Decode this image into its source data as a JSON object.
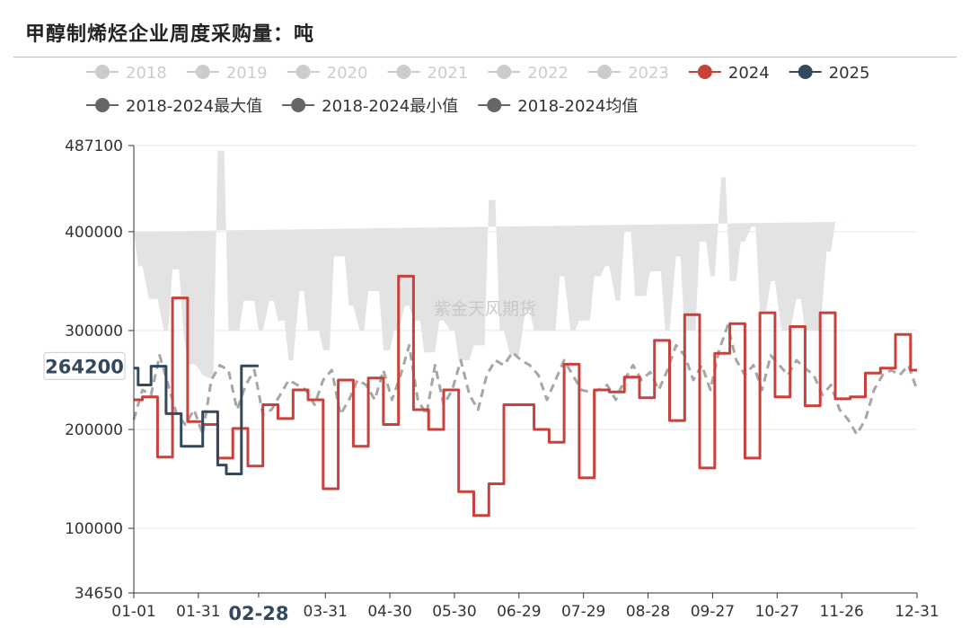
{
  "title": "甲醇制烯烃企业周度采购量：吨",
  "watermark": "紫金天风期货",
  "colors": {
    "band": "#e3e3e3",
    "mean": "#a6a6a6",
    "s2024": "#c8413d",
    "s2025": "#34495e",
    "inactive": "#cccccc",
    "stat_marker": "#666666"
  },
  "legend_row1": [
    {
      "label": "2018",
      "color": "#cccccc",
      "active": false
    },
    {
      "label": "2019",
      "color": "#cccccc",
      "active": false
    },
    {
      "label": "2020",
      "color": "#cccccc",
      "active": false
    },
    {
      "label": "2021",
      "color": "#cccccc",
      "active": false
    },
    {
      "label": "2022",
      "color": "#cccccc",
      "active": false
    },
    {
      "label": "2023",
      "color": "#cccccc",
      "active": false
    },
    {
      "label": "2024",
      "color": "#c8413d",
      "active": true
    },
    {
      "label": "2025",
      "color": "#34495e",
      "active": true
    }
  ],
  "legend_row2": [
    {
      "label": "2018-2024最大值",
      "color": "#666666",
      "active": true
    },
    {
      "label": "2018-2024最小值",
      "color": "#666666",
      "active": true
    },
    {
      "label": "2018-2024均值",
      "color": "#666666",
      "active": true
    }
  ],
  "chart_data": {
    "type": "line",
    "title": "甲醇制烯烃企业周度采购量：吨",
    "ylim": [
      34650,
      487100
    ],
    "y_ticks": [
      34650,
      100000,
      200000,
      300000,
      400000,
      487100
    ],
    "y_tick_labels": [
      "34650",
      "100000",
      "200000",
      "300000",
      "400000",
      "487100"
    ],
    "x_tick_labels": [
      "01-01",
      "01-31",
      "02-28",
      "03-31",
      "04-30",
      "05-30",
      "06-29",
      "07-29",
      "08-28",
      "09-27",
      "10-27",
      "11-26",
      "12-31"
    ],
    "x_tick_days": [
      0,
      30,
      58,
      89,
      119,
      149,
      179,
      209,
      239,
      269,
      299,
      329,
      364
    ],
    "x_range_days": [
      0,
      364
    ],
    "pointer": {
      "x_label": "02-28",
      "y_label": "264200"
    },
    "band": {
      "name": "2018-2024最大值 / 2018-2024最小值",
      "days": [
        0,
        2,
        4,
        7,
        9,
        11,
        14,
        16,
        18,
        21,
        23,
        25,
        28,
        30,
        32,
        35,
        37,
        39,
        42,
        44,
        46,
        49,
        51,
        53,
        56,
        58,
        60,
        63,
        65,
        67,
        70,
        72,
        74,
        77,
        79,
        81,
        84,
        86,
        88,
        91,
        93,
        95,
        98,
        100,
        102,
        105,
        107,
        109,
        112,
        114,
        116,
        119,
        121,
        123,
        126,
        128,
        130,
        133,
        135,
        137,
        140,
        142,
        144,
        147,
        149,
        151,
        154,
        156,
        158,
        161,
        163,
        165,
        168,
        170,
        172,
        175,
        177,
        179,
        182,
        184,
        186,
        189,
        191,
        193,
        196,
        198,
        200,
        203,
        205,
        207,
        210,
        212,
        214,
        217,
        219,
        221,
        224,
        226,
        228,
        231,
        233,
        235,
        238,
        240,
        242,
        245,
        247,
        249,
        252,
        254,
        256,
        259,
        261,
        263,
        266,
        268,
        270,
        273,
        275,
        277,
        280,
        282,
        284,
        287,
        289,
        291,
        294,
        296,
        298,
        301,
        303,
        305,
        308,
        310,
        312,
        315,
        317,
        319,
        322,
        324,
        326,
        329,
        331,
        333,
        336,
        338,
        340,
        343,
        345,
        347,
        350,
        352,
        354,
        357,
        359,
        361,
        364
      ],
      "max": [
        400000,
        365000,
        365000,
        332000,
        332000,
        332000,
        300000,
        300000,
        362000,
        362000,
        300000,
        266000,
        266000,
        262000,
        255000,
        252000,
        252000,
        482000,
        482000,
        300000,
        300000,
        300000,
        330000,
        330000,
        330000,
        300000,
        300000,
        330000,
        330000,
        310000,
        310000,
        270000,
        270000,
        340000,
        340000,
        300000,
        300000,
        300000,
        280000,
        280000,
        375000,
        375000,
        375000,
        325000,
        325000,
        300000,
        300000,
        340000,
        340000,
        340000,
        280000,
        280000,
        300000,
        300000,
        325000,
        325000,
        310000,
        310000,
        278000,
        278000,
        278000,
        310000,
        310000,
        300000,
        300000,
        270000,
        270000,
        270000,
        285000,
        285000,
        285000,
        432000,
        432000,
        300000,
        300000,
        275000,
        275000,
        275000,
        320000,
        320000,
        300000,
        300000,
        300000,
        300000,
        300000,
        355000,
        355000,
        300000,
        300000,
        310000,
        310000,
        310000,
        355000,
        355000,
        365000,
        365000,
        330000,
        330000,
        400000,
        400000,
        335000,
        335000,
        335000,
        360000,
        360000,
        360000,
        300000,
        300000,
        375000,
        375000,
        300000,
        300000,
        300000,
        390000,
        390000,
        355000,
        355000,
        455000,
        455000,
        350000,
        350000,
        390000,
        390000,
        405000,
        405000,
        320000,
        320000,
        350000,
        350000,
        300000,
        300000,
        300000,
        332000,
        332000,
        300000,
        300000,
        300000,
        300000,
        380000,
        380000,
        410000,
        410000
      ],
      "min": [
        220000,
        107000,
        107000,
        200000,
        200000,
        200000,
        195000,
        195000,
        195000,
        152000,
        152000,
        62000,
        62000,
        195000,
        195000,
        112000,
        112000,
        190000,
        190000,
        215000,
        215000,
        195000,
        195000,
        195000,
        195000,
        195000,
        195000,
        195000,
        195000,
        195000,
        195000,
        195000,
        195000,
        200000,
        200000,
        135000,
        135000,
        165000,
        165000,
        195000,
        195000,
        195000,
        195000,
        195000,
        195000,
        165000,
        165000,
        195000,
        195000,
        195000,
        165000,
        165000,
        195000,
        195000,
        195000,
        195000,
        160000,
        160000,
        190000,
        190000,
        195000,
        195000,
        195000,
        195000,
        195000,
        195000,
        190000,
        190000,
        190000,
        195000,
        195000,
        195000,
        195000,
        195000,
        195000,
        162000,
        162000,
        190000,
        190000,
        190000,
        165000,
        165000,
        190000,
        190000,
        190000,
        190000,
        165000,
        165000,
        165000,
        140000,
        140000,
        140000,
        165000,
        165000,
        160000,
        160000,
        130000,
        130000,
        135000,
        135000,
        135000,
        190000,
        190000,
        140000,
        140000,
        120000,
        120000,
        140000,
        140000,
        140000,
        140000,
        120000,
        120000,
        140000,
        140000,
        34650,
        34650,
        150000,
        150000,
        180000,
        180000,
        120000,
        120000,
        120000,
        130000,
        130000,
        115000,
        115000,
        105000,
        105000,
        110000,
        110000,
        195000,
        195000,
        135000,
        135000,
        135000,
        150000,
        150000,
        195000,
        195000,
        150000,
        150000,
        150000,
        155000,
        155000,
        130000,
        130000,
        120000,
        120000,
        160000,
        160000,
        135000,
        135000,
        105000
      ]
    },
    "series": [
      {
        "name": "2018-2024均值",
        "color": "#a6a6a6",
        "dashed": true,
        "days": [
          0,
          4,
          8,
          12,
          16,
          20,
          24,
          28,
          32,
          36,
          40,
          44,
          48,
          52,
          56,
          60,
          64,
          68,
          72,
          76,
          80,
          84,
          88,
          92,
          96,
          100,
          104,
          108,
          112,
          116,
          120,
          124,
          128,
          132,
          136,
          140,
          144,
          148,
          152,
          156,
          160,
          164,
          168,
          172,
          176,
          180,
          184,
          188,
          192,
          196,
          200,
          204,
          208,
          212,
          216,
          220,
          224,
          228,
          232,
          236,
          240,
          244,
          248,
          252,
          256,
          260,
          264,
          268,
          272,
          276,
          280,
          284,
          288,
          292,
          296,
          300,
          304,
          308,
          312,
          316,
          320,
          324,
          328,
          332,
          336,
          340,
          344,
          348,
          352,
          356,
          360,
          364
        ],
        "values": [
          210000,
          240000,
          235000,
          275000,
          245000,
          215000,
          205000,
          220000,
          195000,
          250000,
          265000,
          260000,
          220000,
          245000,
          260000,
          215000,
          220000,
          235000,
          250000,
          245000,
          240000,
          225000,
          250000,
          260000,
          215000,
          230000,
          250000,
          245000,
          230000,
          260000,
          230000,
          255000,
          285000,
          230000,
          215000,
          265000,
          225000,
          240000,
          270000,
          235000,
          220000,
          255000,
          270000,
          265000,
          278000,
          270000,
          265000,
          255000,
          230000,
          250000,
          270000,
          255000,
          240000,
          238000,
          240000,
          245000,
          230000,
          250000,
          265000,
          250000,
          258000,
          240000,
          260000,
          285000,
          275000,
          250000,
          265000,
          240000,
          280000,
          305000,
          270000,
          255000,
          265000,
          240000,
          275000,
          265000,
          255000,
          270000,
          262000,
          255000,
          235000,
          245000,
          220000,
          210000,
          195000,
          210000,
          240000,
          255000,
          260000,
          255000,
          265000,
          240000
        ]
      },
      {
        "name": "2024",
        "color": "#c8413d",
        "dashed": false,
        "days": [
          0,
          4,
          4,
          11,
          11,
          18,
          18,
          25,
          25,
          32,
          32,
          39,
          39,
          46,
          46,
          53,
          53,
          60,
          60,
          67,
          67,
          74,
          74,
          81,
          81,
          88,
          88,
          95,
          95,
          102,
          102,
          109,
          109,
          116,
          116,
          123,
          123,
          130,
          130,
          137,
          137,
          144,
          144,
          151,
          151,
          158,
          158,
          165,
          165,
          172,
          172,
          179,
          179,
          186,
          186,
          193,
          193,
          200,
          200,
          207,
          207,
          214,
          214,
          221,
          221,
          228,
          228,
          235,
          235,
          242,
          242,
          249,
          249,
          256,
          256,
          263,
          263,
          270,
          270,
          277,
          277,
          284,
          284,
          291,
          291,
          298,
          298,
          305,
          305,
          312,
          312,
          319,
          319,
          326,
          326,
          333,
          333,
          340,
          340,
          347,
          347,
          354,
          354,
          361,
          361,
          364
        ],
        "values": [
          230000,
          230000,
          233000,
          233000,
          172000,
          172000,
          333000,
          333000,
          208000,
          208000,
          205000,
          205000,
          171000,
          171000,
          201000,
          201000,
          163000,
          163000,
          225000,
          225000,
          211000,
          211000,
          240000,
          240000,
          230000,
          230000,
          140000,
          140000,
          250000,
          250000,
          183000,
          183000,
          252000,
          252000,
          205000,
          205000,
          355000,
          355000,
          220000,
          220000,
          200000,
          200000,
          240000,
          240000,
          137000,
          137000,
          113000,
          113000,
          145000,
          145000,
          225000,
          225000,
          225000,
          225000,
          200000,
          200000,
          187000,
          187000,
          266000,
          266000,
          151000,
          151000,
          240000,
          240000,
          238000,
          238000,
          253000,
          253000,
          232000,
          232000,
          290000,
          290000,
          209000,
          209000,
          316000,
          316000,
          161000,
          161000,
          277000,
          277000,
          307000,
          307000,
          171000,
          171000,
          318000,
          318000,
          233000,
          233000,
          304000,
          304000,
          224000,
          224000,
          318000,
          318000,
          231000,
          231000,
          233000,
          233000,
          257000,
          257000,
          262000,
          262000,
          296000,
          296000,
          260000,
          260000
        ]
      },
      {
        "name": "2025",
        "color": "#34495e",
        "dashed": false,
        "days": [
          0,
          2,
          2,
          8,
          8,
          15,
          15,
          22,
          22,
          32,
          32,
          39,
          39,
          43,
          43,
          50,
          50,
          58
        ],
        "values": [
          262000,
          262000,
          245000,
          245000,
          264000,
          264000,
          216000,
          216000,
          183000,
          183000,
          218000,
          218000,
          164000,
          164000,
          155000,
          155000,
          264200,
          264200
        ]
      }
    ]
  }
}
